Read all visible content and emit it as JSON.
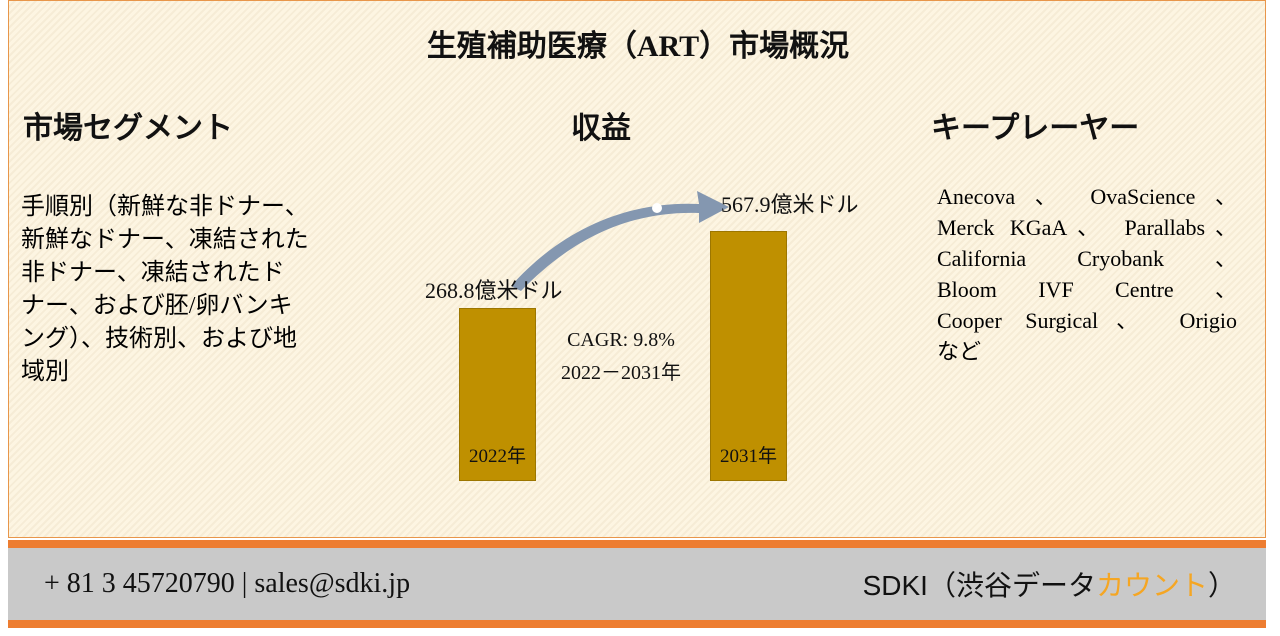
{
  "header": {
    "title": "生殖補助医療（ART）市場概況"
  },
  "segments": {
    "heading": "市場セグメント",
    "lines": [
      "手順別（新鮮な非ドナー、",
      "新鮮なドナー、凍結された",
      "非ドナー、凍結されたド",
      "ナー、および胚/卵バンキ",
      "ング）、技術別、および地",
      "域別"
    ]
  },
  "revenue": {
    "heading": "収益",
    "start": {
      "label": "268.8億米ドル",
      "year": "2022年"
    },
    "end": {
      "label": "567.9億米ドル",
      "year": "2031年"
    },
    "cagr": [
      "CAGR: 9.8%",
      "2022－2031年"
    ]
  },
  "players": {
    "heading": "キープレーヤー",
    "lines": [
      "Anecova 、 OvaScience 、",
      "Merck KGaA、 Parallabs、",
      "California Cryobank 、",
      "Bloom IVF Centre 、",
      "Cooper Surgical、 Origio",
      "など"
    ]
  },
  "footer": {
    "contact": "+ 81 3 45720790 | sales@sdki.jp",
    "brand": [
      "SDKI（渋谷データ",
      "カウント",
      "）"
    ]
  }
}
